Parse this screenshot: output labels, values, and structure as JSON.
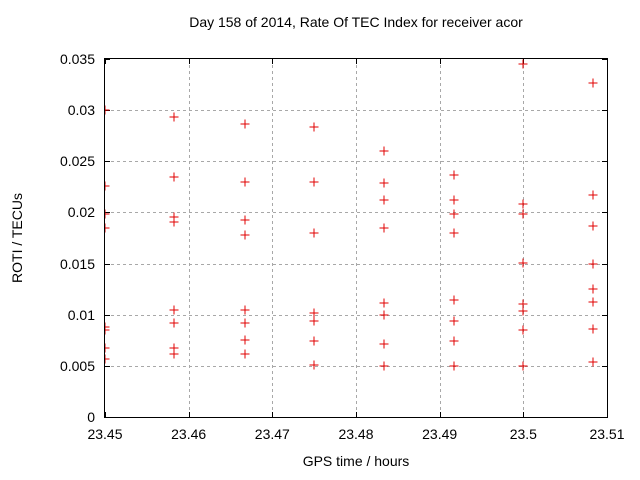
{
  "chart_data": {
    "type": "scatter",
    "title": "Day 158 of 2014, Rate Of TEC Index for receiver acor",
    "xlabel": "GPS time / hours",
    "ylabel": "ROTI / TECUs",
    "xlim": [
      23.45,
      23.51
    ],
    "ylim": [
      0,
      0.035
    ],
    "xticks": [
      23.45,
      23.46,
      23.47,
      23.48,
      23.49,
      23.5,
      23.51
    ],
    "xtick_labels": [
      "23.45",
      "23.46",
      "23.47",
      "23.48",
      "23.49",
      "23.5",
      "23.51"
    ],
    "yticks": [
      0,
      0.005,
      0.01,
      0.015,
      0.02,
      0.025,
      0.03,
      0.035
    ],
    "ytick_labels": [
      "0",
      "0.005",
      "0.01",
      "0.015",
      "0.02",
      "0.025",
      "0.03",
      "0.035"
    ],
    "grid": true,
    "legend": "none",
    "marker": "plus",
    "marker_color": "#e00000",
    "frame_color": "#000000",
    "grid_color": "#a8a8a8",
    "points": [
      [
        23.45,
        0.03
      ],
      [
        23.45,
        0.0226
      ],
      [
        23.45,
        0.0198
      ],
      [
        23.45,
        0.0185
      ],
      [
        23.45,
        0.0088
      ],
      [
        23.45,
        0.0085
      ],
      [
        23.45,
        0.0067
      ],
      [
        23.45,
        0.0057
      ],
      [
        23.4583,
        0.0293
      ],
      [
        23.4583,
        0.0235
      ],
      [
        23.4583,
        0.0196
      ],
      [
        23.4583,
        0.0191
      ],
      [
        23.4583,
        0.0105
      ],
      [
        23.4583,
        0.0092
      ],
      [
        23.4583,
        0.0067
      ],
      [
        23.4583,
        0.0062
      ],
      [
        23.4667,
        0.0286
      ],
      [
        23.4667,
        0.023
      ],
      [
        23.4667,
        0.0193
      ],
      [
        23.4667,
        0.0178
      ],
      [
        23.4667,
        0.0105
      ],
      [
        23.4667,
        0.0092
      ],
      [
        23.4667,
        0.0075
      ],
      [
        23.4667,
        0.0062
      ],
      [
        23.475,
        0.0284
      ],
      [
        23.475,
        0.023
      ],
      [
        23.475,
        0.018
      ],
      [
        23.475,
        0.0102
      ],
      [
        23.475,
        0.0094
      ],
      [
        23.475,
        0.0074
      ],
      [
        23.475,
        0.0051
      ],
      [
        23.4833,
        0.026
      ],
      [
        23.4833,
        0.0229
      ],
      [
        23.4833,
        0.0212
      ],
      [
        23.4833,
        0.0185
      ],
      [
        23.4833,
        0.0111
      ],
      [
        23.4833,
        0.01
      ],
      [
        23.4833,
        0.0071
      ],
      [
        23.4833,
        0.005
      ],
      [
        23.4917,
        0.0237
      ],
      [
        23.4917,
        0.0212
      ],
      [
        23.4917,
        0.0198
      ],
      [
        23.4917,
        0.018
      ],
      [
        23.4917,
        0.0114
      ],
      [
        23.4917,
        0.0094
      ],
      [
        23.4917,
        0.0074
      ],
      [
        23.4917,
        0.005
      ],
      [
        23.5,
        0.0345
      ],
      [
        23.5,
        0.0208
      ],
      [
        23.5,
        0.0198
      ],
      [
        23.5,
        0.0151
      ],
      [
        23.5,
        0.011
      ],
      [
        23.5,
        0.0104
      ],
      [
        23.5,
        0.0085
      ],
      [
        23.5,
        0.005
      ],
      [
        23.5083,
        0.0327
      ],
      [
        23.5083,
        0.0217
      ],
      [
        23.5083,
        0.0187
      ],
      [
        23.5083,
        0.015
      ],
      [
        23.5083,
        0.0125
      ],
      [
        23.5083,
        0.0112
      ],
      [
        23.5083,
        0.0086
      ],
      [
        23.5083,
        0.0054
      ]
    ]
  }
}
